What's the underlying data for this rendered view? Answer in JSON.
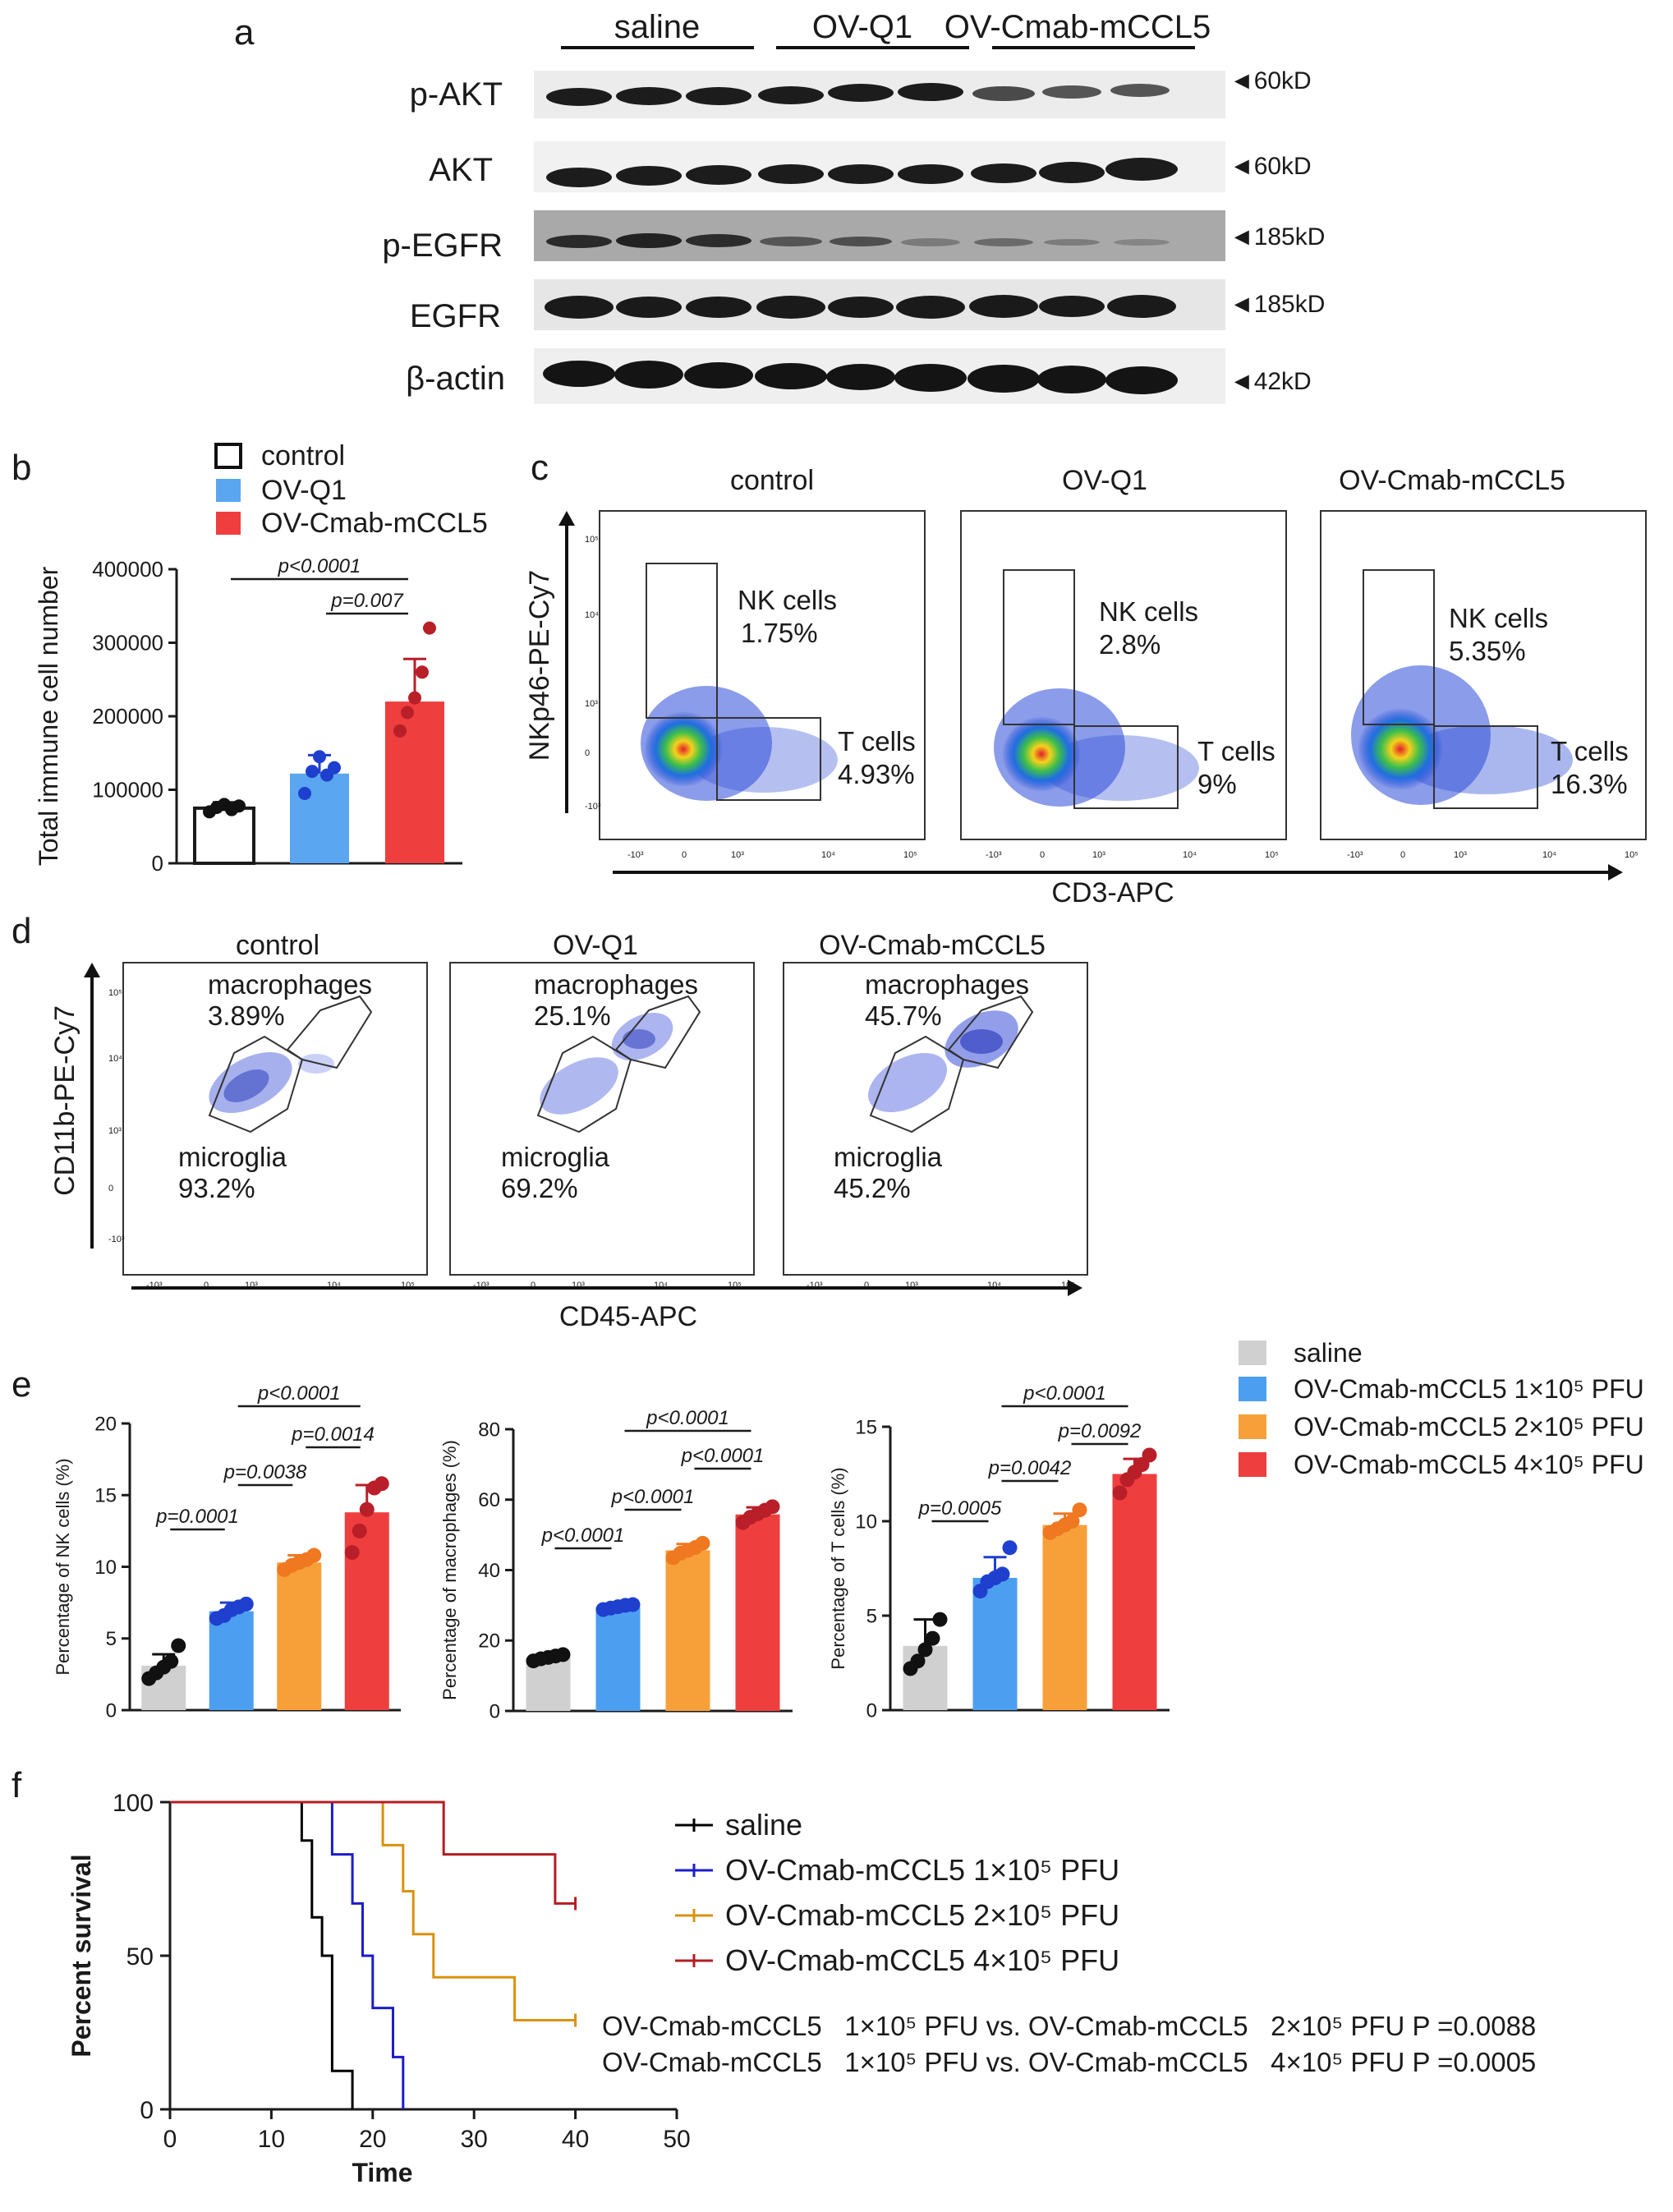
{
  "colors": {
    "saline": "#d0d0d0",
    "control": "#ffffff",
    "ovq1": "#5aa6f0",
    "cmab": "#ef3e3e",
    "low": "#4c9ff0",
    "mid": "#f7a03a",
    "high": "#ef3e3e",
    "km_saline": "#000000",
    "km_low": "#1c1ccc",
    "km_mid": "#d9920c",
    "km_high": "#b41d23",
    "black": "#1a1a1a"
  },
  "panel_a": {
    "letter": "a",
    "groups": [
      "saline",
      "OV-Q1",
      "OV-Cmab-mCCL5"
    ],
    "bands": [
      {
        "label": "p-AKT",
        "size": "◄60kD"
      },
      {
        "label": "AKT",
        "size": "◄60kD"
      },
      {
        "label": "p-EGFR",
        "size": "◄185kD"
      },
      {
        "label": "EGFR",
        "size": "◄185kD"
      },
      {
        "label": "β-actin",
        "size": "◄42kD"
      }
    ]
  },
  "chart_data": [
    {
      "id": "b",
      "type": "bar",
      "letter": "b",
      "ylabel": "Total immune cell number",
      "ylim": [
        0,
        400000
      ],
      "yticks": [
        0,
        100000,
        200000,
        300000,
        400000
      ],
      "tick_labels": [
        "0",
        "100000",
        "200000",
        "300000",
        "400000"
      ],
      "legend": [
        "control",
        "OV-Q1",
        "OV-Cmab-mCCL5"
      ],
      "categories": [
        "control",
        "OV-Q1",
        "OV-Cmab-mCCL5"
      ],
      "values": [
        75000,
        122000,
        220000
      ],
      "sd": [
        8000,
        25000,
        58000
      ],
      "points": [
        [
          70000,
          76000,
          80000,
          73000,
          78000
        ],
        [
          95000,
          125000,
          145000,
          120000,
          130000
        ],
        [
          180000,
          205000,
          225000,
          260000,
          320000
        ]
      ],
      "brackets": [
        {
          "from": 0,
          "to": 2,
          "label": "p<0.0001"
        },
        {
          "from": 1,
          "to": 2,
          "label": "p=0.007"
        }
      ]
    },
    {
      "id": "e1",
      "type": "bar",
      "letter": "e",
      "ylabel": "Percentage of NK cells (%)",
      "ylim": [
        0,
        20
      ],
      "yticks": [
        0,
        5,
        10,
        15,
        20
      ],
      "tick_labels": [
        "0",
        "5",
        "10",
        "15",
        "20"
      ],
      "categories": [
        "saline",
        "OV-Cmab-mCCL5 1×10⁵ PFU",
        "OV-Cmab-mCCL5 2×10⁵ PFU",
        "OV-Cmab-mCCL5 4×10⁵ PFU"
      ],
      "values": [
        3.1,
        6.9,
        10.3,
        13.8
      ],
      "sd": [
        0.8,
        0.6,
        0.5,
        1.9
      ],
      "points": [
        [
          2.2,
          2.6,
          3.0,
          3.4,
          4.5
        ],
        [
          6.4,
          6.6,
          7.0,
          7.2,
          7.4
        ],
        [
          9.8,
          10.1,
          10.3,
          10.5,
          10.8
        ],
        [
          11.0,
          12.5,
          14.0,
          15.5,
          15.8
        ]
      ],
      "brackets": [
        {
          "from": 0,
          "to": 1,
          "label": "p=0.0001"
        },
        {
          "from": 1,
          "to": 2,
          "label": "p=0.0038"
        },
        {
          "from": 2,
          "to": 3,
          "label": "p=0.0014"
        },
        {
          "from": 1,
          "to": 3,
          "label": "p<0.0001"
        }
      ]
    },
    {
      "id": "e2",
      "type": "bar",
      "ylabel": "Percentage of macrophages (%)",
      "ylim": [
        0,
        80
      ],
      "yticks": [
        0,
        20,
        40,
        60,
        80
      ],
      "tick_labels": [
        "0",
        "20",
        "40",
        "60",
        "80"
      ],
      "categories": [
        "saline",
        "OV-Cmab-mCCL5 1×10⁵ PFU",
        "OV-Cmab-mCCL5 2×10⁵ PFU",
        "OV-Cmab-mCCL5 4×10⁵ PFU"
      ],
      "values": [
        15.2,
        29.5,
        45.6,
        55.8
      ],
      "sd": [
        1.0,
        0.6,
        1.8,
        2.0
      ],
      "points": [
        [
          14.2,
          14.8,
          15.2,
          15.6,
          16.0
        ],
        [
          28.8,
          29.2,
          29.6,
          30.0,
          30.2
        ],
        [
          43.5,
          44.8,
          45.6,
          46.4,
          47.6
        ],
        [
          53.5,
          55.0,
          56.0,
          57.0,
          58.0
        ]
      ],
      "brackets": [
        {
          "from": 0,
          "to": 1,
          "label": "p<0.0001"
        },
        {
          "from": 1,
          "to": 2,
          "label": "p<0.0001"
        },
        {
          "from": 2,
          "to": 3,
          "label": "p<0.0001"
        },
        {
          "from": 1,
          "to": 3,
          "label": "p<0.0001"
        }
      ]
    },
    {
      "id": "e3",
      "type": "bar",
      "ylabel": "Percentage of T cells (%)",
      "ylim": [
        0,
        15
      ],
      "yticks": [
        0,
        5,
        10,
        15
      ],
      "tick_labels": [
        "0",
        "5",
        "10",
        "15"
      ],
      "categories": [
        "saline",
        "OV-Cmab-mCCL5 1×10⁵ PFU",
        "OV-Cmab-mCCL5 2×10⁵ PFU",
        "OV-Cmab-mCCL5 4×10⁵ PFU"
      ],
      "values": [
        3.4,
        7.0,
        9.8,
        12.5
      ],
      "sd": [
        1.4,
        1.1,
        0.6,
        0.8
      ],
      "points": [
        [
          2.2,
          2.6,
          3.2,
          3.8,
          4.8
        ],
        [
          6.3,
          6.8,
          7.0,
          7.2,
          8.6
        ],
        [
          9.4,
          9.6,
          9.8,
          10.0,
          10.6
        ],
        [
          11.5,
          12.2,
          12.6,
          13.0,
          13.5
        ]
      ],
      "brackets": [
        {
          "from": 0,
          "to": 1,
          "label": "p=0.0005"
        },
        {
          "from": 1,
          "to": 2,
          "label": "p=0.0042"
        },
        {
          "from": 2,
          "to": 3,
          "label": "p=0.0092"
        },
        {
          "from": 1,
          "to": 3,
          "label": "p<0.0001"
        }
      ]
    },
    {
      "id": "c",
      "type": "scatter",
      "letter": "c",
      "subtype": "flow-cytometry",
      "xlabel": "CD3-APC",
      "ylabel": "NKp46-PE-Cy7",
      "tick_labels": [
        "-10³",
        "0",
        "10³",
        "10⁴",
        "10⁵"
      ],
      "plots": [
        {
          "title": "control",
          "gates": [
            {
              "name": "NK cells",
              "value": "1.75%"
            },
            {
              "name": "T cells",
              "value": "4.93%"
            }
          ]
        },
        {
          "title": "OV-Q1",
          "gates": [
            {
              "name": "NK cells",
              "value": "2.8%"
            },
            {
              "name": "T cells",
              "value": "9%"
            }
          ]
        },
        {
          "title": "OV-Cmab-mCCL5",
          "gates": [
            {
              "name": "NK cells",
              "value": "5.35%"
            },
            {
              "name": "T cells",
              "value": "16.3%"
            }
          ]
        }
      ]
    },
    {
      "id": "d",
      "type": "scatter",
      "letter": "d",
      "subtype": "flow-cytometry",
      "xlabel": "CD45-APC",
      "ylabel": "CD11b-PE-Cy7",
      "tick_labels": [
        "-10³",
        "0",
        "10³",
        "10⁴",
        "10⁵"
      ],
      "plots": [
        {
          "title": "control",
          "gates": [
            {
              "name": "macrophages",
              "value": "3.89%"
            },
            {
              "name": "microglia",
              "value": "93.2%"
            }
          ]
        },
        {
          "title": "OV-Q1",
          "gates": [
            {
              "name": "macrophages",
              "value": "25.1%"
            },
            {
              "name": "microglia",
              "value": "69.2%"
            }
          ]
        },
        {
          "title": "OV-Cmab-mCCL5",
          "gates": [
            {
              "name": "macrophages",
              "value": "45.7%"
            },
            {
              "name": "microglia",
              "value": "45.2%"
            }
          ]
        }
      ]
    },
    {
      "id": "f",
      "type": "line",
      "letter": "f",
      "subtype": "kaplan-meier",
      "xlabel": "Time",
      "ylabel": "Percent survival",
      "xlim": [
        0,
        50
      ],
      "ylim": [
        0,
        100
      ],
      "xticks": [
        0,
        10,
        20,
        30,
        40,
        50
      ],
      "yticks": [
        0,
        50,
        100
      ],
      "x_tick_labels": [
        "0",
        "10",
        "20",
        "30",
        "40",
        "50"
      ],
      "y_tick_labels": [
        "0",
        "50",
        "100"
      ],
      "series": [
        {
          "name": "saline",
          "color_key": "km_saline",
          "points": [
            [
              0,
              100
            ],
            [
              13,
              100
            ],
            [
              13,
              87.5
            ],
            [
              14,
              87.5
            ],
            [
              14,
              62.5
            ],
            [
              15,
              62.5
            ],
            [
              15,
              50
            ],
            [
              16,
              50
            ],
            [
              16,
              12.5
            ],
            [
              18,
              12.5
            ],
            [
              18,
              0
            ]
          ]
        },
        {
          "name": "OV-Cmab-mCCL5 1×10⁵ PFU",
          "color_key": "km_low",
          "points": [
            [
              0,
              100
            ],
            [
              16,
              100
            ],
            [
              16,
              83
            ],
            [
              18,
              83
            ],
            [
              18,
              67
            ],
            [
              19,
              67
            ],
            [
              19,
              50
            ],
            [
              20,
              50
            ],
            [
              20,
              33
            ],
            [
              22,
              33
            ],
            [
              22,
              17
            ],
            [
              23,
              17
            ],
            [
              23,
              0
            ]
          ]
        },
        {
          "name": "OV-Cmab-mCCL5 2×10⁵ PFU",
          "color_key": "km_mid",
          "points": [
            [
              0,
              100
            ],
            [
              21,
              100
            ],
            [
              21,
              86
            ],
            [
              23,
              86
            ],
            [
              23,
              71
            ],
            [
              24,
              71
            ],
            [
              24,
              57
            ],
            [
              26,
              57
            ],
            [
              26,
              43
            ],
            [
              34,
              43
            ],
            [
              34,
              29
            ],
            [
              40,
              29
            ]
          ]
        },
        {
          "name": "OV-Cmab-mCCL5 4×10⁵ PFU",
          "color_key": "km_high",
          "points": [
            [
              0,
              100
            ],
            [
              27,
              100
            ],
            [
              27,
              83
            ],
            [
              38,
              83
            ],
            [
              38,
              67
            ],
            [
              40,
              67
            ]
          ]
        }
      ],
      "stats": [
        "OV-Cmab-mCCL5   1×10⁵ PFU vs. OV-Cmab-mCCL5   2×10⁵ PFU P =0.0088",
        "OV-Cmab-mCCL5   1×10⁵ PFU vs. OV-Cmab-mCCL5   4×10⁵ PFU P =0.0005"
      ]
    }
  ]
}
